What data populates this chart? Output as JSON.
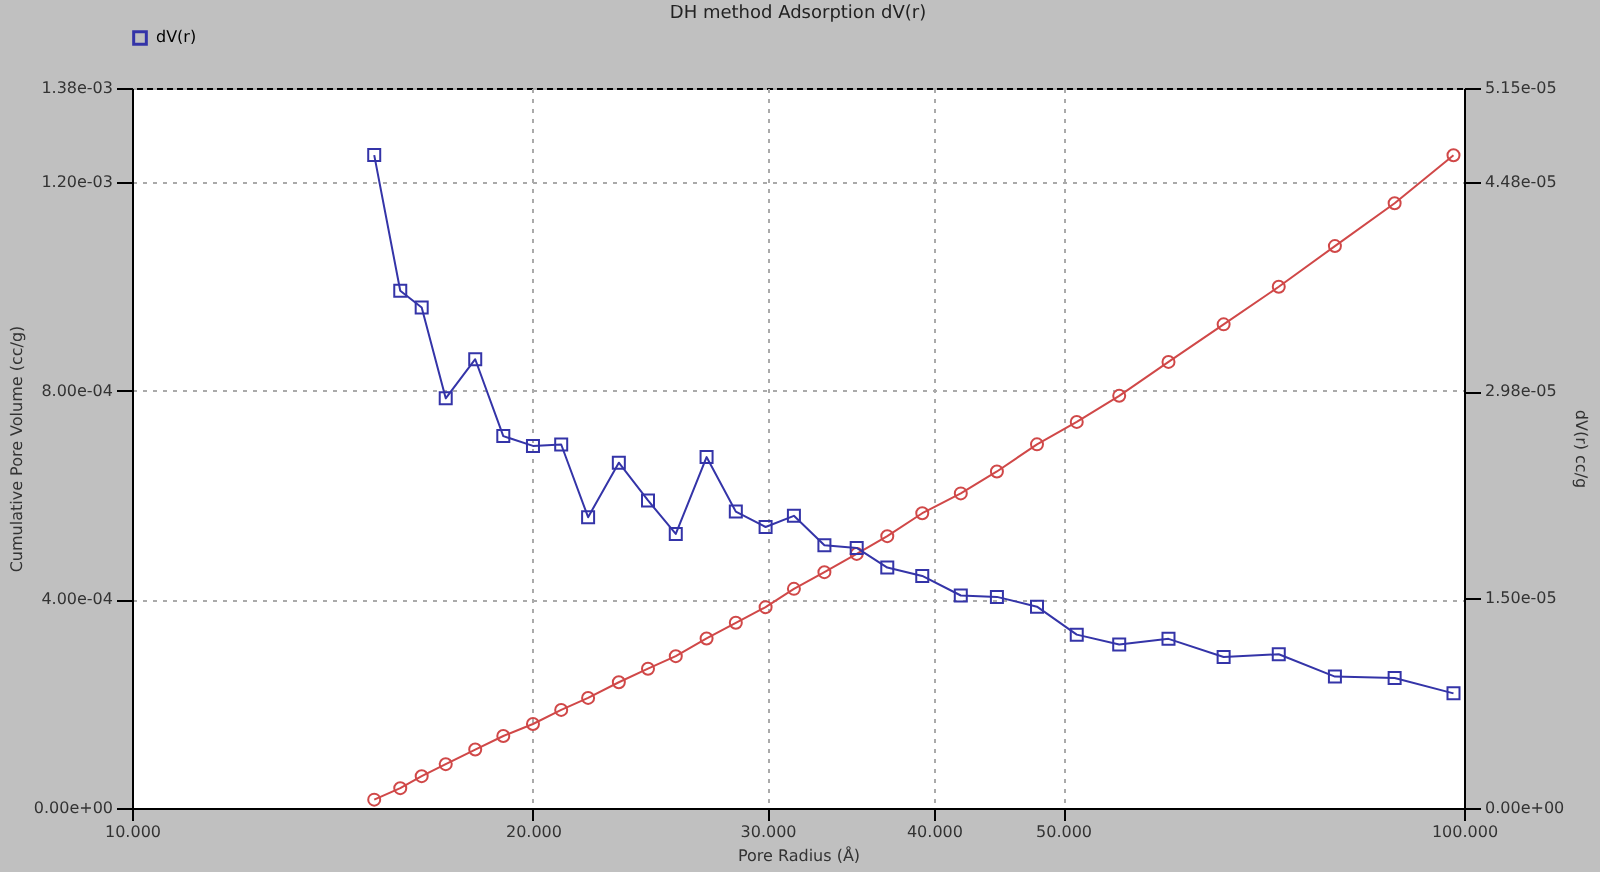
{
  "chart_data": {
    "type": "line",
    "title": "DH method Adsorption  dV(r)",
    "xlabel": "Pore Radius (Å)",
    "ylabel": "Cumulative Pore Volume (cc/g)",
    "y2label": "dV(r) cc/g",
    "log": "x",
    "grid": true,
    "legend": "top left",
    "line_style": "solid",
    "x": [
      15.2,
      15.9,
      16.5,
      17.2,
      18.1,
      19.0,
      20.0,
      21.0,
      22.0,
      23.2,
      24.4,
      25.6,
      27.0,
      28.4,
      29.9,
      31.4,
      33.1,
      35.0,
      36.9,
      39.2,
      41.9,
      44.6,
      47.8,
      51.2,
      55.1,
      60.0,
      66.0,
      72.6,
      80.0,
      88.7,
      98.2
    ],
    "xlim": [
      10,
      100
    ],
    "xticks": [
      {
        "value": 10,
        "label": "10.000"
      },
      {
        "value": 20,
        "label": "20.000"
      },
      {
        "value": 30,
        "label": "30.000"
      },
      {
        "value": 40,
        "label": "40.000"
      },
      {
        "value": 50,
        "label": "50.000"
      },
      {
        "value": 100,
        "label": "100.000"
      }
    ],
    "ylim": [
      0,
      0.00138
    ],
    "yticks": [
      {
        "value": 0,
        "label": "0.00e+00"
      },
      {
        "value": 0.0004,
        "label": "4.00e-04"
      },
      {
        "value": 0.0008,
        "label": "8.00e-04"
      },
      {
        "value": 0.0012,
        "label": "1.20e-03"
      },
      {
        "value": 0.00138,
        "label": "1.38e-03"
      }
    ],
    "y2lim": [
      0,
      5.15e-05
    ],
    "y2ticks": [
      {
        "value": 0,
        "label": "0.00e+00"
      },
      {
        "value": 1.5e-05,
        "label": "1.50e-05"
      },
      {
        "value": 2.98e-05,
        "label": "2.98e-05"
      },
      {
        "value": 4.48e-05,
        "label": "4.48e-05"
      },
      {
        "value": 5.15e-05,
        "label": "5.15e-05"
      }
    ],
    "series": [
      {
        "color": "#d04848",
        "marker": "circle",
        "values": [
          1.6e-05,
          3.8e-05,
          6.1e-05,
          8.4e-05,
          0.000112,
          0.000138,
          0.000161,
          0.000188,
          0.000211,
          0.000241,
          0.000267,
          0.000291,
          0.000325,
          0.000355,
          0.000385,
          0.00042,
          0.000452,
          0.000487,
          0.000521,
          0.000565,
          0.000603,
          0.000645,
          0.000697,
          0.00074,
          0.00079,
          0.000855,
          0.000927,
          0.000999,
          0.001077,
          0.001159,
          0.001251
        ]
      },
      {
        "name": "dV(r)",
        "color": "#3434a8",
        "marker": "square",
        "axis": "y2",
        "values": [
          4.67e-05,
          3.7e-05,
          3.58e-05,
          2.93e-05,
          3.21e-05,
          2.66e-05,
          2.59e-05,
          2.6e-05,
          2.08e-05,
          2.47e-05,
          2.2e-05,
          1.96e-05,
          2.51e-05,
          2.12e-05,
          2.01e-05,
          2.09e-05,
          1.88e-05,
          1.86e-05,
          1.72e-05,
          1.66e-05,
          1.52e-05,
          1.51e-05,
          1.44e-05,
          1.24e-05,
          1.17e-05,
          1.21e-05,
          1.08e-05,
          1.1e-05,
          9.4e-06,
          9.3e-06,
          8.2e-06
        ]
      }
    ]
  }
}
